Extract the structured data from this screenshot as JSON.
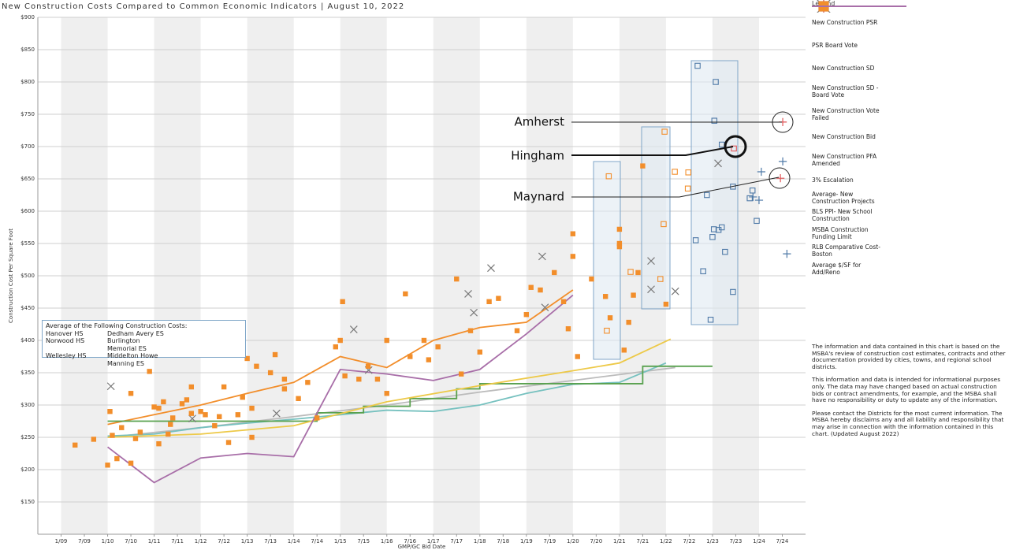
{
  "chart_data": {
    "type": "scatter",
    "title": "New Construction Costs Compared to Common Economic Indicators | August 10, 2022",
    "y_label": "Construction Cost Per Square Foot",
    "x_label": "GMP/GC Bid Date",
    "legend_title": "Legend",
    "xlim": [
      2008.5,
      2025
    ],
    "ylim": [
      100,
      900
    ],
    "grid": true,
    "yticks": [
      {
        "value": 150,
        "label": "$150"
      },
      {
        "value": 200,
        "label": "$200"
      },
      {
        "value": 250,
        "label": "$250"
      },
      {
        "value": 300,
        "label": "$300"
      },
      {
        "value": 350,
        "label": "$350"
      },
      {
        "value": 400,
        "label": "$400"
      },
      {
        "value": 450,
        "label": "$450"
      },
      {
        "value": 500,
        "label": "$500"
      },
      {
        "value": 550,
        "label": "$550"
      },
      {
        "value": 600,
        "label": "$600"
      },
      {
        "value": 650,
        "label": "$650"
      },
      {
        "value": 700,
        "label": "$700"
      },
      {
        "value": 750,
        "label": "$750"
      },
      {
        "value": 800,
        "label": "$800"
      },
      {
        "value": 850,
        "label": "$850"
      },
      {
        "value": 900,
        "label": "$900"
      }
    ],
    "xticks": [
      {
        "value": 2009,
        "label": "1/09"
      },
      {
        "value": 2009.5,
        "label": "7/09"
      },
      {
        "value": 2010,
        "label": "1/10"
      },
      {
        "value": 2010.5,
        "label": "7/10"
      },
      {
        "value": 2011,
        "label": "1/11"
      },
      {
        "value": 2011.5,
        "label": "7/11"
      },
      {
        "value": 2012,
        "label": "1/12"
      },
      {
        "value": 2012.5,
        "label": "7/12"
      },
      {
        "value": 2013,
        "label": "1/13"
      },
      {
        "value": 2013.5,
        "label": "7/13"
      },
      {
        "value": 2014,
        "label": "1/14"
      },
      {
        "value": 2014.5,
        "label": "7/14"
      },
      {
        "value": 2015,
        "label": "1/15"
      },
      {
        "value": 2015.5,
        "label": "7/15"
      },
      {
        "value": 2016,
        "label": "1/16"
      },
      {
        "value": 2016.5,
        "label": "7/16"
      },
      {
        "value": 2017,
        "label": "1/17"
      },
      {
        "value": 2017.5,
        "label": "7/17"
      },
      {
        "value": 2018,
        "label": "1/18"
      },
      {
        "value": 2018.5,
        "label": "7/18"
      },
      {
        "value": 2019,
        "label": "1/19"
      },
      {
        "value": 2019.5,
        "label": "7/19"
      },
      {
        "value": 2020,
        "label": "1/20"
      },
      {
        "value": 2020.5,
        "label": "7/20"
      },
      {
        "value": 2021,
        "label": "1/21"
      },
      {
        "value": 2021.5,
        "label": "7/21"
      },
      {
        "value": 2022,
        "label": "1/22"
      },
      {
        "value": 2022.5,
        "label": "7/22"
      },
      {
        "value": 2023,
        "label": "1/23"
      },
      {
        "value": 2023.5,
        "label": "7/23"
      },
      {
        "value": 2024,
        "label": "1/24"
      },
      {
        "value": 2024.5,
        "label": "7/24"
      }
    ],
    "series": [
      {
        "name": "New Construction PSR",
        "marker": "plus",
        "color": "#4e79a7",
        "x": [
          2024.05,
          2024.0,
          2024.51,
          2024.6,
          2023.87
        ],
        "values": [
          661,
          617,
          677,
          534,
          622
        ]
      },
      {
        "name": "PSR Board Vote",
        "marker": "plus",
        "color": "#e15759",
        "x": [
          2024.51,
          2024.46
        ],
        "values": [
          738,
          651
        ]
      },
      {
        "name": "New Construction SD",
        "marker": "square-open",
        "color": "#4e79a7",
        "x": [
          2022.68,
          2023.07,
          2023.04,
          2023.2,
          2022.64,
          2022.8,
          2022.88,
          2022.96,
          2023.0,
          2023.03,
          2023.13,
          2023.2,
          2023.27,
          2023.44,
          2023.44,
          2023.86,
          2023.8,
          2023.95
        ],
        "values": [
          825,
          800,
          740,
          703,
          555,
          507,
          625,
          432,
          560,
          572,
          571,
          575,
          537,
          638,
          475,
          632,
          620,
          585
        ]
      },
      {
        "name": "New Construction SD - Board Vote",
        "marker": "square-open",
        "color": "#e15759",
        "x": [
          2023.46
        ],
        "values": [
          697
        ]
      },
      {
        "name": "New Construction Vote Failed",
        "marker": "x",
        "color": "#777777",
        "x": [
          2010.07,
          2011.82,
          2013.63,
          2015.29,
          2015.61,
          2017.75,
          2018.24,
          2017.87,
          2019.34,
          2019.4,
          2021.68,
          2021.68,
          2022.2,
          2023.12
        ],
        "values": [
          329,
          279,
          287,
          417,
          354,
          472,
          512,
          443,
          530,
          451,
          523,
          479,
          476,
          674
        ]
      },
      {
        "name": "New Construction Bid",
        "marker": "square-open",
        "color": "#f28e2b",
        "x": [
          2020.77,
          2021.97,
          2022.19,
          2022.48,
          2022.47,
          2021.95,
          2021.88,
          2020.73,
          2021.24
        ],
        "values": [
          654,
          723,
          661,
          660,
          635,
          580,
          495,
          415,
          506
        ]
      },
      {
        "name": "New Construction PFA Amended",
        "marker": "square",
        "color": "#f28e2b",
        "x": [
          2009.3,
          2009.7,
          2010.0,
          2010.05,
          2010.1,
          2010.2,
          2010.3,
          2010.5,
          2010.5,
          2010.6,
          2010.7,
          2010.9,
          2011.0,
          2011.1,
          2011.1,
          2011.2,
          2011.3,
          2011.35,
          2011.4,
          2011.6,
          2011.7,
          2011.8,
          2011.8,
          2012.0,
          2012.1,
          2012.3,
          2012.4,
          2012.5,
          2012.6,
          2012.8,
          2012.9,
          2013.0,
          2013.1,
          2013.1,
          2013.2,
          2013.5,
          2013.6,
          2013.8,
          2013.8,
          2014.1,
          2014.3,
          2014.5,
          2014.9,
          2015.0,
          2015.05,
          2015.1,
          2015.4,
          2015.6,
          2015.8,
          2016.0,
          2016.0,
          2016.4,
          2016.5,
          2016.8,
          2016.9,
          2017.1,
          2017.5,
          2017.6,
          2017.8,
          2018.0,
          2018.2,
          2018.4,
          2018.8,
          2019.0,
          2019.1,
          2019.3,
          2019.6,
          2019.8,
          2020.0,
          2020.0,
          2020.1,
          2020.4,
          2020.7,
          2020.8,
          2021.0,
          2021.0,
          2021.0,
          2021.1,
          2021.3,
          2021.4,
          2021.5,
          2022.0,
          2019.9,
          2021.2
        ],
        "values": [
          238,
          247,
          207,
          290,
          253,
          217,
          265,
          210,
          318,
          248,
          258,
          352,
          297,
          295,
          240,
          305,
          255,
          270,
          280,
          302,
          308,
          287,
          328,
          290,
          285,
          268,
          282,
          328,
          242,
          285,
          312,
          372,
          295,
          250,
          360,
          350,
          378,
          325,
          340,
          310,
          335,
          280,
          390,
          400,
          460,
          345,
          340,
          360,
          340,
          400,
          318,
          472,
          375,
          400,
          370,
          390,
          495,
          348,
          415,
          382,
          460,
          465,
          415,
          440,
          482,
          478,
          505,
          460,
          565,
          530,
          375,
          495,
          468,
          435,
          572,
          550,
          545,
          385,
          470,
          505,
          670,
          456,
          418,
          428
        ]
      },
      {
        "name": "3% Escalation",
        "marker": "line",
        "color": "#bbbbbb",
        "x": [
          2010,
          2012,
          2014,
          2016,
          2018,
          2020,
          2022.2
        ],
        "values": [
          250,
          265,
          282,
          300,
          320,
          338,
          358
        ]
      },
      {
        "name": "Average- New Construction Projects",
        "marker": "line",
        "color": "#f28e2b",
        "x": [
          2010,
          2011,
          2012,
          2013,
          2014,
          2015,
          2016,
          2017,
          2018,
          2019,
          2020
        ],
        "values": [
          270,
          285,
          300,
          318,
          335,
          375,
          358,
          400,
          420,
          428,
          478
        ]
      },
      {
        "name": "BLS PPI- New School Construction",
        "marker": "line",
        "color": "#76c1bf",
        "x": [
          2010,
          2011,
          2012,
          2013,
          2014,
          2015,
          2016,
          2017,
          2018,
          2019,
          2020,
          2021,
          2022
        ],
        "values": [
          252,
          255,
          265,
          272,
          278,
          285,
          292,
          290,
          300,
          318,
          332,
          335,
          365
        ]
      },
      {
        "name": "MSBA Construction Funding Limit",
        "marker": "line",
        "color": "#59a14f",
        "x": [
          2010,
          2014.5,
          2014.5,
          2015.5,
          2015.5,
          2016.5,
          2016.5,
          2017.5,
          2017.5,
          2018,
          2018,
          2021.5,
          2021.5,
          2023
        ],
        "values": [
          275,
          275,
          288,
          288,
          298,
          298,
          310,
          310,
          325,
          325,
          333,
          333,
          360,
          360
        ]
      },
      {
        "name": "RLB Comparative Cost- Boston",
        "marker": "line",
        "color": "#edc948",
        "x": [
          2010,
          2012,
          2014,
          2016,
          2018,
          2020,
          2021,
          2022.1
        ],
        "values": [
          250,
          255,
          268,
          305,
          330,
          353,
          365,
          402
        ]
      },
      {
        "name": "Average $/SF for Add/Reno",
        "marker": "line",
        "color": "#a86ea8",
        "x": [
          2010,
          2011,
          2012,
          2013,
          2014,
          2015,
          2016,
          2017,
          2018,
          2019,
          2020
        ],
        "values": [
          235,
          180,
          218,
          225,
          220,
          355,
          348,
          338,
          355,
          410,
          470
        ]
      }
    ],
    "annotations": [
      "Amherst",
      "Hingham",
      "Maynard"
    ],
    "average_box": {
      "title": "Average of the Following Construction Costs:",
      "rows": [
        [
          "Hanover HS",
          "Dedham Avery ES"
        ],
        [
          "Norwood HS",
          "Burlington Memorial ES"
        ],
        [
          "Wellesley HS",
          "Middelton Howe Manning ES"
        ]
      ]
    },
    "notes": [
      "The information and data contained in this chart is based on the MSBA's review of construction cost estimates, contracts and other documentation provided by cities, towns, and regional school districts.",
      "This information and data is intended for informational purposes only. The data may have changed based on actual construction bids or contract amendments, for example, and the MSBA shall have no responsibility or duty to update any of the information.",
      "Please contact the Districts for the most current information. The MSBA hereby disclaims any and all liability and responsibility that may arise in connection with the information contained in this chart. (Updated August 2022)"
    ]
  }
}
